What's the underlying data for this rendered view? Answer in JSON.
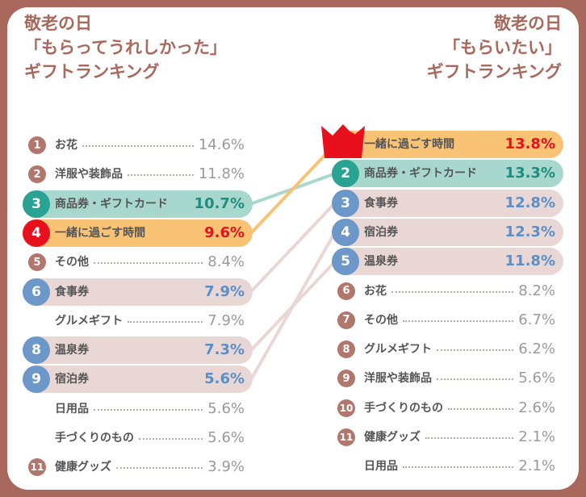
{
  "colors": {
    "frame": "#a8685c",
    "title": "#a8685c",
    "rank_circle_brown": "#b1776c",
    "rank_circle_red": "#e8101c",
    "rank_circle_teal": "#2aa394",
    "rank_circle_blue": "#6b97c9",
    "highlight_orange": "#f9c376",
    "highlight_teal": "#a8d8cd",
    "highlight_pink": "#e9d7d6",
    "value_red": "#e8101c",
    "value_teal": "#1e8c7e",
    "value_blue": "#5b8fc8",
    "value_grey": "#9a9a9a"
  },
  "left_title": [
    "敬老の日",
    "「もらってうれしかった」",
    "ギフトランキング"
  ],
  "right_title": [
    "敬老の日",
    "「もらいたい」",
    "ギフトランキング"
  ],
  "chart_data": [
    {
      "type": "table",
      "title": "敬老の日「もらってうれしかった」ギフトランキング",
      "rows": [
        {
          "rank": "1",
          "item": "お花",
          "value": "14.6%",
          "percent": 14.6,
          "style": "plain"
        },
        {
          "rank": "2",
          "item": "洋服や装飾品",
          "value": "11.8%",
          "percent": 11.8,
          "style": "plain"
        },
        {
          "rank": "3",
          "item": "商品券・ギフトカード",
          "value": "10.7%",
          "percent": 10.7,
          "style": "teal"
        },
        {
          "rank": "4",
          "item": "一緒に過ごす時間",
          "value": "9.6%",
          "percent": 9.6,
          "style": "orange"
        },
        {
          "rank": "5",
          "item": "その他",
          "value": "8.4%",
          "percent": 8.4,
          "style": "plain"
        },
        {
          "rank": "6",
          "item": "食事券",
          "value": "7.9%",
          "percent": 7.9,
          "style": "pink"
        },
        {
          "rank": "",
          "item": "グルメギフト",
          "value": "7.9%",
          "percent": 7.9,
          "style": "plain"
        },
        {
          "rank": "8",
          "item": "温泉券",
          "value": "7.3%",
          "percent": 7.3,
          "style": "pink"
        },
        {
          "rank": "9",
          "item": "宿泊券",
          "value": "5.6%",
          "percent": 5.6,
          "style": "pink"
        },
        {
          "rank": "",
          "item": "日用品",
          "value": "5.6%",
          "percent": 5.6,
          "style": "plain"
        },
        {
          "rank": "",
          "item": "手づくりのもの",
          "value": "5.6%",
          "percent": 5.6,
          "style": "plain"
        },
        {
          "rank": "11",
          "item": "健康グッズ",
          "value": "3.9%",
          "percent": 3.9,
          "style": "plain"
        }
      ]
    },
    {
      "type": "table",
      "title": "敬老の日「もらいたい」ギフトランキング",
      "rows": [
        {
          "rank": "1",
          "item": "一緒に過ごす時間",
          "value": "13.8%",
          "percent": 13.8,
          "style": "orange"
        },
        {
          "rank": "2",
          "item": "商品券・ギフトカード",
          "value": "13.3%",
          "percent": 13.3,
          "style": "teal"
        },
        {
          "rank": "3",
          "item": "食事券",
          "value": "12.8%",
          "percent": 12.8,
          "style": "pink"
        },
        {
          "rank": "4",
          "item": "宿泊券",
          "value": "12.3%",
          "percent": 12.3,
          "style": "pink"
        },
        {
          "rank": "5",
          "item": "温泉券",
          "value": "11.8%",
          "percent": 11.8,
          "style": "pink"
        },
        {
          "rank": "6",
          "item": "お花",
          "value": "8.2%",
          "percent": 8.2,
          "style": "plain"
        },
        {
          "rank": "7",
          "item": "その他",
          "value": "6.7%",
          "percent": 6.7,
          "style": "plain"
        },
        {
          "rank": "8",
          "item": "グルメギフト",
          "value": "6.2%",
          "percent": 6.2,
          "style": "plain"
        },
        {
          "rank": "9",
          "item": "洋服や装飾品",
          "value": "5.6%",
          "percent": 5.6,
          "style": "plain"
        },
        {
          "rank": "10",
          "item": "手づくりのもの",
          "value": "2.6%",
          "percent": 2.6,
          "style": "plain"
        },
        {
          "rank": "11",
          "item": "健康グッズ",
          "value": "2.1%",
          "percent": 2.1,
          "style": "plain"
        },
        {
          "rank": "",
          "item": "日用品",
          "value": "2.1%",
          "percent": 2.1,
          "style": "plain"
        }
      ]
    }
  ]
}
